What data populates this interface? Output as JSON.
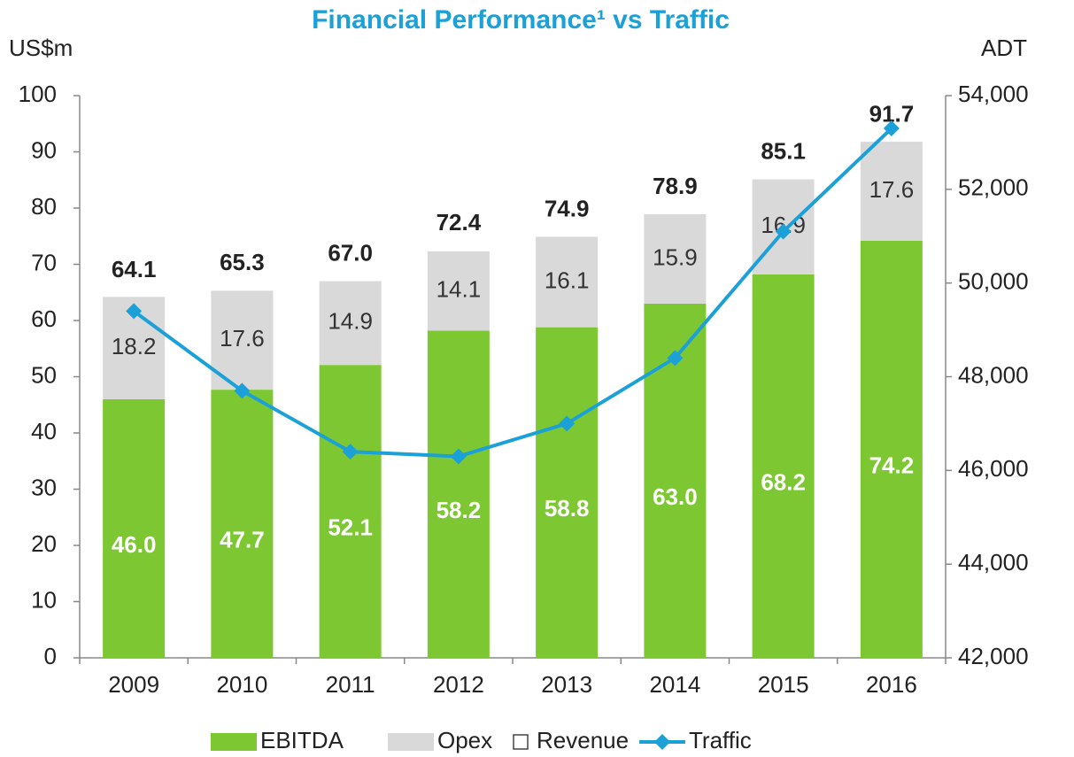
{
  "chart_data": {
    "type": "bar",
    "title": "Financial Performance¹ vs Traffic",
    "ylabel": "US$m",
    "y2label": "ADT",
    "categories": [
      "2009",
      "2010",
      "2011",
      "2012",
      "2013",
      "2014",
      "2015",
      "2016"
    ],
    "series": [
      {
        "name": "EBITDA",
        "type": "bar",
        "color": "#7dc832",
        "values": [
          46.0,
          47.7,
          52.1,
          58.2,
          58.8,
          63.0,
          68.2,
          74.2
        ],
        "value_labels": [
          "46.0",
          "47.7",
          "52.1",
          "58.2",
          "58.8",
          "63.0",
          "68.2",
          "74.2"
        ]
      },
      {
        "name": "Opex",
        "type": "bar",
        "color": "#d9d9d9",
        "values": [
          18.2,
          17.6,
          14.9,
          14.1,
          16.1,
          15.9,
          16.9,
          17.6
        ],
        "value_labels": [
          "18.2",
          "17.6",
          "14.9",
          "14.1",
          "16.1",
          "15.9",
          "16.9",
          "17.6"
        ]
      },
      {
        "name": "Revenue",
        "type": "total",
        "color": "#ffffff",
        "values": [
          64.1,
          65.3,
          67.0,
          72.4,
          74.9,
          78.9,
          85.1,
          91.7
        ],
        "value_labels": [
          "64.1",
          "65.3",
          "67.0",
          "72.4",
          "74.9",
          "78.9",
          "85.1",
          "91.7"
        ]
      },
      {
        "name": "Traffic",
        "type": "line",
        "axis": "y2",
        "color": "#1ba0d8",
        "values": [
          49400,
          47700,
          46400,
          46300,
          47000,
          48400,
          51100,
          53300
        ]
      }
    ],
    "ylim": [
      0,
      100
    ],
    "yticks": [
      0,
      10,
      20,
      30,
      40,
      50,
      60,
      70,
      80,
      90,
      100
    ],
    "y2lim": [
      42000,
      54000
    ],
    "y2ticks": [
      {
        "value": 42000,
        "label": "42,000"
      },
      {
        "value": 44000,
        "label": "44,000"
      },
      {
        "value": 46000,
        "label": "46,000"
      },
      {
        "value": 48000,
        "label": "48,000"
      },
      {
        "value": 50000,
        "label": "50,000"
      },
      {
        "value": 52000,
        "label": "52,000"
      },
      {
        "value": 54000,
        "label": "54,000"
      }
    ],
    "legend": "bottom"
  }
}
